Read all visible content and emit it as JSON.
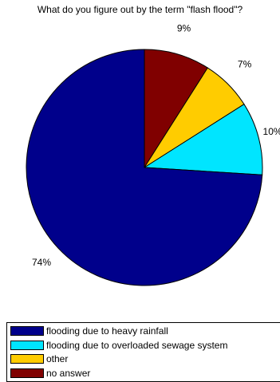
{
  "chart_data": {
    "type": "pie",
    "title": "What do you figure out by the term \"flash flood\"?",
    "slices": [
      {
        "label": "flooding due to heavy rainfall",
        "value": 74,
        "value_label": "74%",
        "color": "#00008b"
      },
      {
        "label": "flooding due to overloaded sewage system",
        "value": 10,
        "value_label": "10%",
        "color": "#00e5ff"
      },
      {
        "label": "other",
        "value": 7,
        "value_label": "7%",
        "color": "#ffcc00"
      },
      {
        "label": "no answer",
        "value": 9,
        "value_label": "9%",
        "color": "#800000"
      }
    ],
    "legend_position": "bottom"
  }
}
